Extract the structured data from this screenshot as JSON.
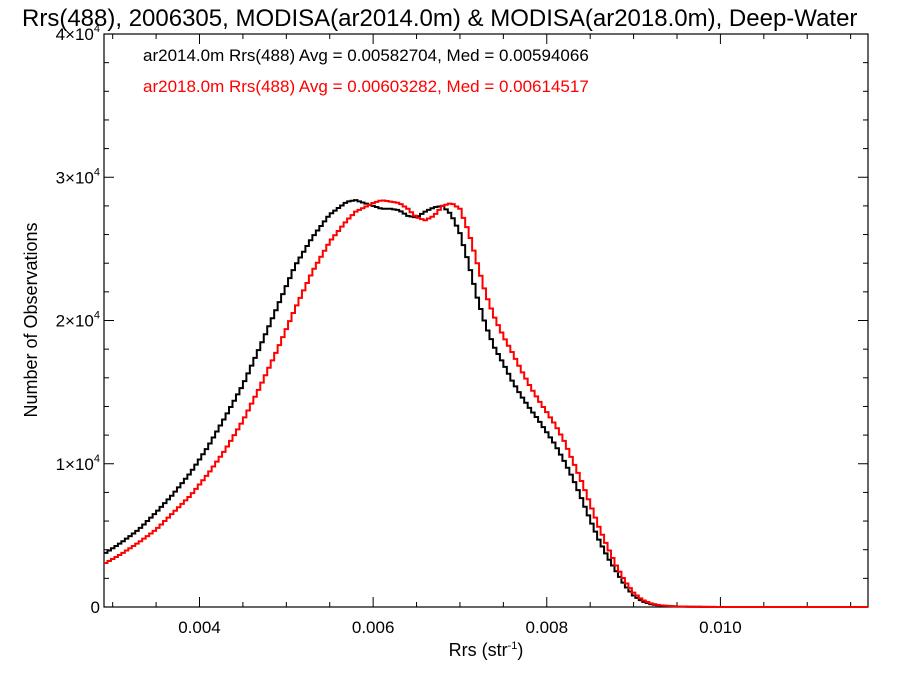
{
  "chart_data": {
    "type": "line",
    "title": "Rrs(488), 2006305, MODISA(ar2014.0m) & MODISA(ar2018.0m), Deep-Water",
    "xlabel_base": "Rrs (str",
    "xlabel_exp": "-1",
    "xlabel_close": ")",
    "ylabel": "Number of Observations",
    "xlim": [
      0.0029,
      0.0117
    ],
    "ylim": [
      0,
      40000
    ],
    "x_ticks": [
      {
        "value": 0.004,
        "label": "0.004"
      },
      {
        "value": 0.006,
        "label": "0.006"
      },
      {
        "value": 0.008,
        "label": "0.008"
      },
      {
        "value": 0.01,
        "label": "0.010"
      }
    ],
    "y_ticks": [
      {
        "value": 0,
        "mant": "0",
        "exp": ""
      },
      {
        "value": 10000,
        "mant": "1×10",
        "exp": "4"
      },
      {
        "value": 20000,
        "mant": "2×10",
        "exp": "4"
      },
      {
        "value": 30000,
        "mant": "3×10",
        "exp": "4"
      },
      {
        "value": 40000,
        "mant": "4×10",
        "exp": "4"
      }
    ],
    "grid": false,
    "legend_position": "top-left",
    "legend": [
      "ar2014.0m Rrs(488) Avg = 0.00582704, Med = 0.00594066",
      "ar2018.0m Rrs(488) Avg = 0.00603282, Med = 0.00614517"
    ],
    "series": [
      {
        "name": "ar2014.0m",
        "color": "#000000",
        "x": [
          0.0029,
          0.0031,
          0.0033,
          0.0035,
          0.0037,
          0.0039,
          0.0041,
          0.0043,
          0.0045,
          0.0047,
          0.0049,
          0.0051,
          0.0053,
          0.0055,
          0.0057,
          0.0058,
          0.0059,
          0.006,
          0.0061,
          0.0062,
          0.0063,
          0.0064,
          0.0065,
          0.0066,
          0.0067,
          0.0068,
          0.0069,
          0.007,
          0.0071,
          0.0072,
          0.0073,
          0.0074,
          0.0075,
          0.0076,
          0.0077,
          0.0078,
          0.0079,
          0.008,
          0.0081,
          0.0082,
          0.0083,
          0.0084,
          0.0085,
          0.0086,
          0.0087,
          0.0088,
          0.0089,
          0.009,
          0.0091,
          0.0092,
          0.0093,
          0.0095,
          0.01,
          0.0117
        ],
        "y": [
          3700,
          4500,
          5400,
          6600,
          7900,
          9400,
          11200,
          13300,
          15500,
          18200,
          21000,
          23800,
          25800,
          27400,
          28300,
          28400,
          28200,
          28000,
          27800,
          27800,
          27700,
          27300,
          27200,
          27600,
          27900,
          28000,
          27400,
          26100,
          24000,
          21600,
          19600,
          18100,
          17000,
          15800,
          14800,
          13900,
          13100,
          12200,
          11300,
          10200,
          9000,
          7600,
          6100,
          4700,
          3500,
          2500,
          1500,
          800,
          400,
          200,
          100,
          30,
          0,
          0
        ]
      },
      {
        "name": "ar2018.0m",
        "color": "#ff0000",
        "x": [
          0.0029,
          0.0031,
          0.0033,
          0.0035,
          0.0037,
          0.0039,
          0.0041,
          0.0043,
          0.0045,
          0.0047,
          0.0049,
          0.0051,
          0.0053,
          0.0055,
          0.0057,
          0.0058,
          0.0059,
          0.006,
          0.0061,
          0.0062,
          0.0063,
          0.0064,
          0.0065,
          0.0066,
          0.0067,
          0.0068,
          0.0069,
          0.007,
          0.0071,
          0.0072,
          0.0073,
          0.0074,
          0.0075,
          0.0076,
          0.0077,
          0.0078,
          0.0079,
          0.008,
          0.0081,
          0.0082,
          0.0083,
          0.0084,
          0.0085,
          0.0086,
          0.0087,
          0.0088,
          0.0089,
          0.009,
          0.0091,
          0.0092,
          0.0093,
          0.0095,
          0.0097,
          0.01,
          0.0117
        ],
        "y": [
          3000,
          3700,
          4500,
          5400,
          6600,
          7800,
          9300,
          11000,
          13000,
          15400,
          18000,
          20800,
          23400,
          25500,
          27000,
          27600,
          27900,
          28200,
          28400,
          28300,
          28200,
          27800,
          27200,
          27000,
          27300,
          28000,
          28200,
          27800,
          26200,
          24000,
          21800,
          20200,
          18900,
          17800,
          16600,
          15500,
          14500,
          13600,
          12700,
          11600,
          10200,
          8800,
          7200,
          5600,
          4200,
          2900,
          1800,
          1000,
          500,
          250,
          120,
          40,
          10,
          0,
          0
        ]
      }
    ]
  }
}
